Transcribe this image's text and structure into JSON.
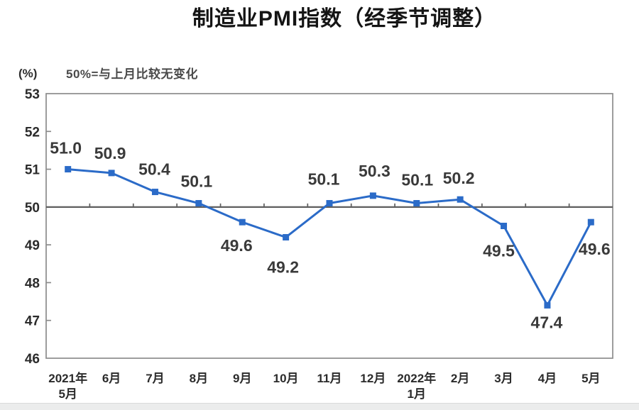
{
  "chart_data": {
    "type": "line",
    "title": "制造业PMI指数（经季节调整）",
    "subtitle": "50%=与上月比较无变化",
    "y_unit_label": "(%)",
    "categories": [
      "2021年\n5月",
      "6月",
      "7月",
      "8月",
      "9月",
      "10月",
      "11月",
      "12月",
      "2022年\n1月",
      "2月",
      "3月",
      "4月",
      "5月"
    ],
    "values": [
      51.0,
      50.9,
      50.4,
      50.1,
      49.6,
      49.2,
      50.1,
      50.3,
      50.1,
      50.2,
      49.5,
      47.4,
      49.6
    ],
    "data_labels": [
      "51.0",
      "50.9",
      "50.4",
      "50.1",
      "49.6",
      "49.2",
      "50.1",
      "50.3",
      "50.1",
      "50.2",
      "49.5",
      "47.4",
      "49.6"
    ],
    "ylim": [
      46,
      53
    ],
    "y_ticks": [
      46,
      47,
      48,
      49,
      50,
      51,
      52,
      53
    ],
    "reference_line": 50,
    "grid": false,
    "legend": "none",
    "line_color": "#2b6bc8",
    "marker": "square",
    "axis_color": "#8c8c8c",
    "reference_line_color": "#5f5f5f"
  }
}
